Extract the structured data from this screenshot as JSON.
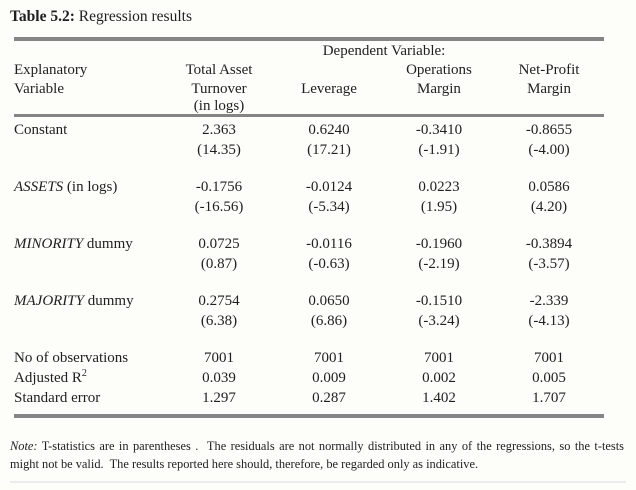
{
  "title": {
    "bold": "Table 5.2:",
    "rest": " Regression results"
  },
  "table": {
    "dependent_variable_label": "Dependent Variable:",
    "row_header": {
      "line1": "Explanatory",
      "line2": "Variable"
    },
    "columns": [
      {
        "line1": "Total Asset",
        "line2": "Turnover",
        "line3": "(in logs)"
      },
      {
        "line1": "",
        "line2": "Leverage",
        "line3": ""
      },
      {
        "line1": "Operations",
        "line2": "Margin",
        "line3": ""
      },
      {
        "line1": "Net-Profit",
        "line2": "Margin",
        "line3": ""
      }
    ],
    "rows": [
      {
        "label_italic": "",
        "label_rest": "Constant",
        "coefs": [
          "2.363",
          "0.6240",
          "-0.3410",
          "-0.8655"
        ],
        "tstats": [
          "(14.35)",
          "(17.21)",
          "(-1.91)",
          "(-4.00)"
        ]
      },
      {
        "label_italic": "ASSETS",
        "label_rest": " (in logs)",
        "coefs": [
          "-0.1756",
          "-0.0124",
          "0.0223",
          "0.0586"
        ],
        "tstats": [
          "(-16.56)",
          "(-5.34)",
          "(1.95)",
          "(4.20)"
        ]
      },
      {
        "label_italic": "MINORITY",
        "label_rest": " dummy",
        "coefs": [
          "0.0725",
          "-0.0116",
          "-0.1960",
          "-0.3894"
        ],
        "tstats": [
          "(0.87)",
          "(-0.63)",
          "(-2.19)",
          "(-3.57)"
        ]
      },
      {
        "label_italic": "MAJORITY",
        "label_rest": " dummy",
        "coefs": [
          "0.2754",
          "0.0650",
          "-0.1510",
          "-2.339"
        ],
        "tstats": [
          "(6.38)",
          "(6.86)",
          "(-3.24)",
          "(-4.13)"
        ]
      }
    ],
    "stats": [
      {
        "label": "No of observations",
        "values": [
          "7001",
          "7001",
          "7001",
          "7001"
        ]
      },
      {
        "label": "Adjusted R",
        "sup": "2",
        "values": [
          "0.039",
          "0.009",
          "0.002",
          "0.005"
        ]
      },
      {
        "label": "Standard error",
        "values": [
          "1.297",
          "0.287",
          "1.402",
          "1.707"
        ]
      }
    ]
  },
  "note": {
    "label": "Note:",
    "text": " T-statistics are in parentheses .  The residuals are not normally distributed in any of the regressions, so the t-tests might not be valid.  The results reported here should, therefore, be regarded only as indicative."
  },
  "colors": {
    "rule": "#858585",
    "text": "#1f1f1f",
    "background": "#fdfdfa"
  }
}
